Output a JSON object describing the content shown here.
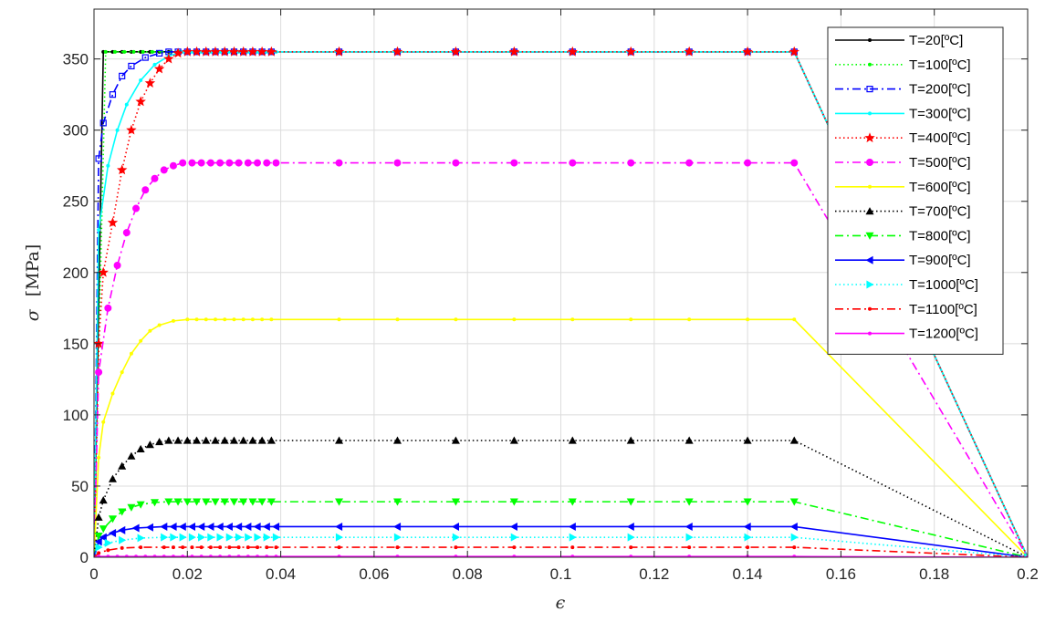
{
  "chart_data": {
    "type": "line",
    "xlabel": "ϵ",
    "ylabel_symbol": "σ",
    "ylabel_unit": "[MPa]",
    "xlim": [
      0,
      0.2
    ],
    "ylim": [
      0,
      385
    ],
    "xticks": [
      0,
      0.02,
      0.04,
      0.06,
      0.08,
      0.1,
      0.12,
      0.14,
      0.16,
      0.18,
      0.2
    ],
    "xtick_labels": [
      "0",
      "0.02",
      "0.04",
      "0.06",
      "0.08",
      "0.1",
      "0.12",
      "0.14",
      "0.16",
      "0.18",
      "0.2"
    ],
    "yticks": [
      0,
      50,
      100,
      150,
      200,
      250,
      300,
      350
    ],
    "ytick_labels": [
      "0",
      "50",
      "100",
      "150",
      "200",
      "250",
      "300",
      "350"
    ],
    "grid": true,
    "legend_position": "top-right",
    "series": [
      {
        "name": "T=20[ºC]",
        "color": "#000000",
        "dash": "solid",
        "marker": "point",
        "points": [
          [
            0,
            0
          ],
          [
            0.002,
            355
          ],
          [
            0.15,
            355
          ],
          [
            0.2,
            0
          ]
        ]
      },
      {
        "name": "T=100[ºC]",
        "color": "#00ff00",
        "dash": "dotted",
        "marker": "point",
        "points": [
          [
            0,
            0
          ],
          [
            0.0025,
            355
          ],
          [
            0.15,
            355
          ],
          [
            0.2,
            0
          ]
        ]
      },
      {
        "name": "T=200[ºC]",
        "color": "#0000ff",
        "dash": "dashdot",
        "marker": "square",
        "points": [
          [
            0,
            0
          ],
          [
            0.001,
            280
          ],
          [
            0.002,
            305
          ],
          [
            0.004,
            325
          ],
          [
            0.006,
            338
          ],
          [
            0.008,
            345
          ],
          [
            0.011,
            351
          ],
          [
            0.014,
            354
          ],
          [
            0.016,
            355
          ],
          [
            0.15,
            355
          ],
          [
            0.2,
            0
          ]
        ]
      },
      {
        "name": "T=300[ºC]",
        "color": "#00ffff",
        "dash": "solid",
        "marker": "point",
        "points": [
          [
            0,
            0
          ],
          [
            0.001,
            230
          ],
          [
            0.003,
            275
          ],
          [
            0.005,
            300
          ],
          [
            0.007,
            318
          ],
          [
            0.01,
            335
          ],
          [
            0.013,
            346
          ],
          [
            0.016,
            352
          ],
          [
            0.019,
            355
          ],
          [
            0.15,
            355
          ],
          [
            0.2,
            0
          ]
        ]
      },
      {
        "name": "T=400[ºC]",
        "color": "#ff0000",
        "dash": "dotted",
        "marker": "star",
        "points": [
          [
            0,
            0
          ],
          [
            0.001,
            150
          ],
          [
            0.002,
            200
          ],
          [
            0.004,
            235
          ],
          [
            0.006,
            272
          ],
          [
            0.008,
            300
          ],
          [
            0.01,
            320
          ],
          [
            0.012,
            333
          ],
          [
            0.014,
            343
          ],
          [
            0.016,
            350
          ],
          [
            0.018,
            354
          ],
          [
            0.02,
            355
          ],
          [
            0.15,
            355
          ],
          [
            0.2,
            0
          ]
        ]
      },
      {
        "name": "T=500[ºC]",
        "color": "#ff00ff",
        "dash": "dashdot",
        "marker": "circle",
        "points": [
          [
            0,
            0
          ],
          [
            0.001,
            130
          ],
          [
            0.003,
            175
          ],
          [
            0.005,
            205
          ],
          [
            0.007,
            228
          ],
          [
            0.009,
            245
          ],
          [
            0.011,
            258
          ],
          [
            0.013,
            266
          ],
          [
            0.015,
            272
          ],
          [
            0.017,
            275
          ],
          [
            0.019,
            277
          ],
          [
            0.15,
            277
          ],
          [
            0.2,
            0
          ]
        ]
      },
      {
        "name": "T=600[ºC]",
        "color": "#ffff00",
        "dash": "solid",
        "marker": "point",
        "points": [
          [
            0,
            0
          ],
          [
            0.001,
            70
          ],
          [
            0.002,
            95
          ],
          [
            0.004,
            115
          ],
          [
            0.006,
            130
          ],
          [
            0.008,
            143
          ],
          [
            0.01,
            152
          ],
          [
            0.012,
            159
          ],
          [
            0.014,
            163
          ],
          [
            0.017,
            166
          ],
          [
            0.02,
            167
          ],
          [
            0.15,
            167
          ],
          [
            0.2,
            0
          ]
        ]
      },
      {
        "name": "T=700[ºC]",
        "color": "#000000",
        "dash": "dotted",
        "marker": "triangle-up",
        "points": [
          [
            0,
            0
          ],
          [
            0.001,
            28
          ],
          [
            0.002,
            40
          ],
          [
            0.004,
            55
          ],
          [
            0.006,
            64
          ],
          [
            0.008,
            71
          ],
          [
            0.01,
            76
          ],
          [
            0.012,
            79
          ],
          [
            0.014,
            81
          ],
          [
            0.016,
            82
          ],
          [
            0.15,
            82
          ],
          [
            0.2,
            0
          ]
        ]
      },
      {
        "name": "T=800[ºC]",
        "color": "#00ff00",
        "dash": "dashdot",
        "marker": "triangle-down",
        "points": [
          [
            0,
            0
          ],
          [
            0.001,
            15
          ],
          [
            0.002,
            20
          ],
          [
            0.004,
            27
          ],
          [
            0.006,
            32
          ],
          [
            0.008,
            35
          ],
          [
            0.01,
            37
          ],
          [
            0.013,
            38.5
          ],
          [
            0.016,
            39
          ],
          [
            0.15,
            39
          ],
          [
            0.2,
            0
          ]
        ]
      },
      {
        "name": "T=900[ºC]",
        "color": "#0000ff",
        "dash": "solid",
        "marker": "triangle-left",
        "points": [
          [
            0,
            0
          ],
          [
            0.001,
            11
          ],
          [
            0.002,
            14
          ],
          [
            0.004,
            17
          ],
          [
            0.006,
            19
          ],
          [
            0.009,
            20.5
          ],
          [
            0.012,
            21
          ],
          [
            0.015,
            21.5
          ],
          [
            0.15,
            21.5
          ],
          [
            0.2,
            0
          ]
        ]
      },
      {
        "name": "T=1000[ºC]",
        "color": "#00ffff",
        "dash": "dotted",
        "marker": "triangle-right",
        "points": [
          [
            0,
            0
          ],
          [
            0.001,
            7
          ],
          [
            0.003,
            10
          ],
          [
            0.006,
            12
          ],
          [
            0.01,
            13.5
          ],
          [
            0.015,
            14
          ],
          [
            0.15,
            14
          ],
          [
            0.2,
            0
          ]
        ]
      },
      {
        "name": "T=1100[ºC]",
        "color": "#ff0000",
        "dash": "dashdot",
        "marker": "point",
        "points": [
          [
            0,
            0
          ],
          [
            0.001,
            3
          ],
          [
            0.003,
            5
          ],
          [
            0.006,
            6.5
          ],
          [
            0.01,
            7
          ],
          [
            0.015,
            7
          ],
          [
            0.15,
            7
          ],
          [
            0.2,
            0
          ]
        ]
      },
      {
        "name": "T=1200[ºC]",
        "color": "#ff00ff",
        "dash": "solid",
        "marker": "point",
        "points": [
          [
            0,
            0
          ],
          [
            0.001,
            0.5
          ],
          [
            0.15,
            0.5
          ],
          [
            0.2,
            0
          ]
        ]
      }
    ]
  }
}
